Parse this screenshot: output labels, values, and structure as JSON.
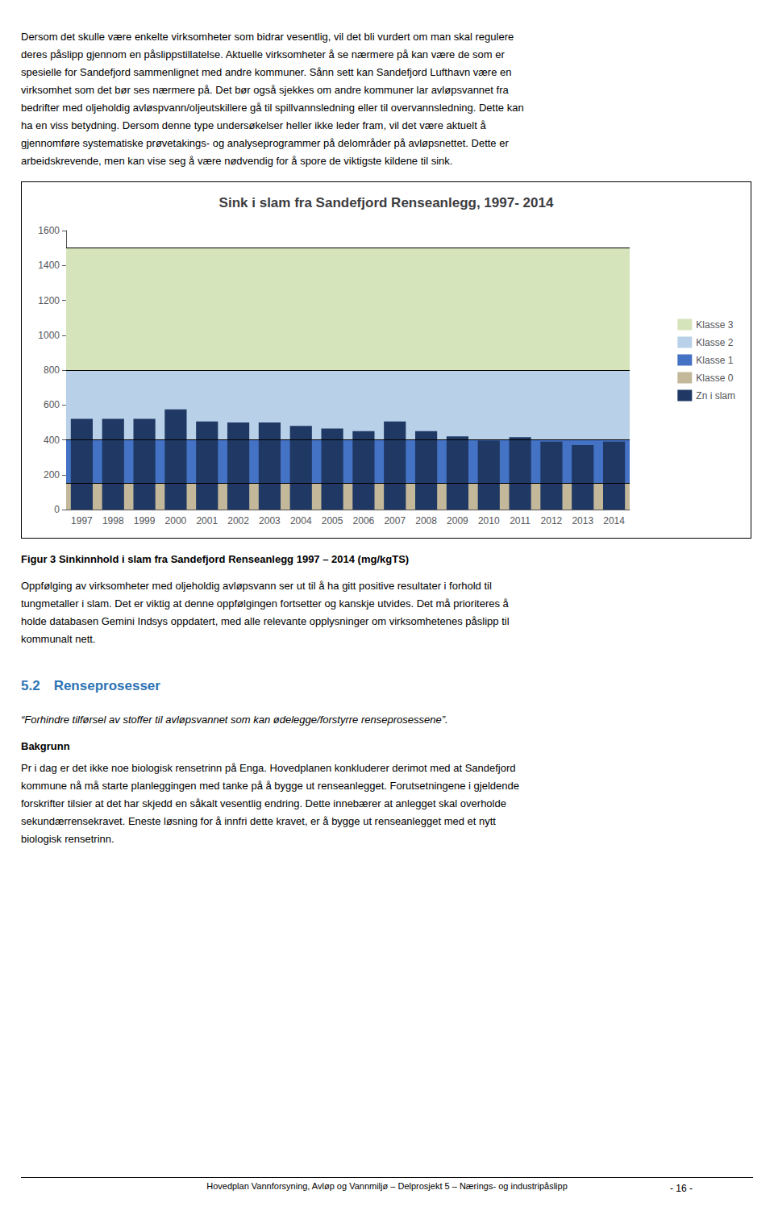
{
  "chart_data": {
    "type": "bar",
    "title": "Sink i slam fra Sandefjord Renseanlegg, 1997- 2014",
    "categories": [
      "1997",
      "1998",
      "1999",
      "2000",
      "2001",
      "2002",
      "2003",
      "2004",
      "2005",
      "2006",
      "2007",
      "2008",
      "2009",
      "2010",
      "2011",
      "2012",
      "2013",
      "2014"
    ],
    "series": [
      {
        "name": "Zn i slam",
        "color": "#1f3864",
        "values": [
          520,
          520,
          520,
          575,
          505,
          500,
          500,
          480,
          465,
          450,
          505,
          450,
          420,
          395,
          415,
          390,
          370,
          390
        ]
      }
    ],
    "bands": [
      {
        "name": "Klasse 3",
        "color": "#d6e4bc",
        "range": [
          800,
          1500
        ]
      },
      {
        "name": "Klasse 2",
        "color": "#b8d0e8",
        "range": [
          400,
          800
        ]
      },
      {
        "name": "Klasse 1",
        "color": "#4472c4",
        "range": [
          150,
          400
        ]
      },
      {
        "name": "Klasse 0",
        "color": "#c4b89a",
        "range": [
          0,
          150
        ]
      }
    ],
    "ylim": [
      0,
      1600
    ],
    "yticks": [
      0,
      200,
      400,
      600,
      800,
      1000,
      1200,
      1400,
      1600
    ],
    "grid": false,
    "legend": "right"
  },
  "text_above": [
    "Dersom det skulle være enkelte virksomheter som bidrar vesentlig, vil det bli vurdert om man skal regulere",
    "deres påslipp gjennom en påslippstillatelse. Aktuelle virksomheter å se nærmere på kan være de som er",
    "spesielle for Sandefjord sammenlignet med andre kommuner. Sånn sett kan Sandefjord Lufthavn være en",
    "virksomhet som det bør ses nærmere på. Det bør også sjekkes om andre kommuner lar avløpsvannet fra",
    "bedrifter med oljeholdig avløspvann/oljeutskillere gå til spillvannsledning eller til overvannsledning. Dette kan",
    "ha en viss betydning. Dersom denne type undersøkelser heller ikke leder fram, vil det være aktuelt å",
    "gjennomføre systematiske prøvetakings- og analyseprogrammer på delområder på avløpsnettet. Dette er",
    "arbeidskrevende, men kan vise seg å være nødvendig for å spore de viktigste kildene til sink."
  ],
  "caption": "Figur 3 Sinkinnhold i slam fra Sandefjord Renseanlegg 1997 – 2014 (mg/kgTS)",
  "text_below": [
    "Oppfølging av virksomheter med oljeholdig avløpsvann ser ut til å ha gitt positive resultater i forhold til",
    "tungmetaller i slam. Det er viktig at denne oppfølgingen fortsetter og kanskje utvides. Det må prioriteres å",
    "holde databasen Gemini Indsys oppdatert, med alle relevante opplysninger om virksomhetenes påslipp til",
    "kommunalt nett."
  ],
  "section_heading": "5.2 Renseprosesser",
  "quote": "“Forhindre tilførsel av stoffer til avløpsvannet som kan ødelegge/forstyrre renseprosessene”.",
  "subheading": "Bakgrunn",
  "subheading_text": [
    "Pr i dag er det ikke noe biologisk rensetrinn på Enga. Hovedplanen konkluderer derimot med at Sandefjord",
    "kommune nå må starte planleggingen med tanke på å bygge ut renseanlegget. Forutsetningene i gjeldende",
    "forskrifter tilsier at det har skjedd en såkalt vesentlig endring. Dette innebærer at anlegget skal overholde",
    "sekundærrensekravet. Eneste løsning for å innfri dette kravet, er å bygge ut renseanlegget med et nytt",
    "biologisk rensetrinn."
  ],
  "footer": "Hovedplan Vannforsyning, Avløp og Vannmiljø – Delprosjekt 5 – Nærings- og industripåslipp",
  "page_number": "- 16 -"
}
